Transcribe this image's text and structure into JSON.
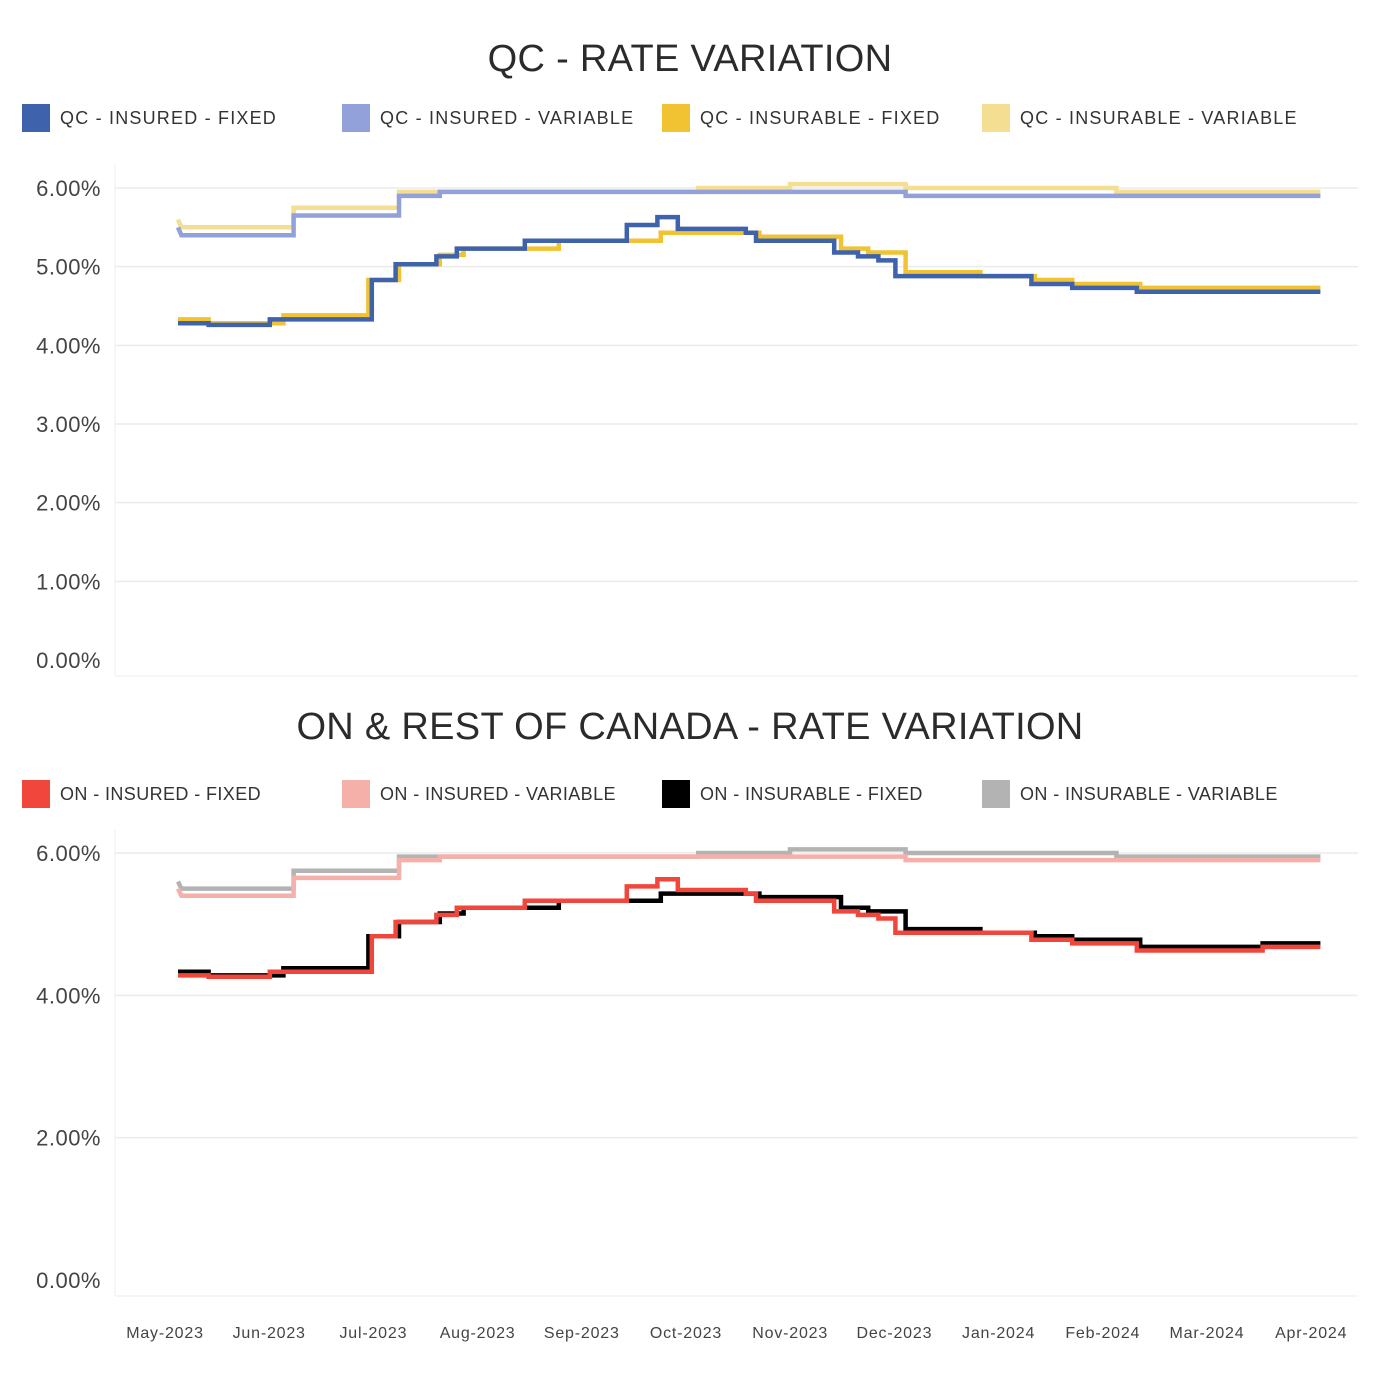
{
  "chart_data": [
    {
      "type": "line",
      "title": "QC - RATE VARIATION",
      "xlabel": "",
      "ylabel": "",
      "ylim": [
        0,
        6.5
      ],
      "yticks": [
        "0.00%",
        "1.00%",
        "2.00%",
        "3.00%",
        "4.00%",
        "5.00%",
        "6.00%"
      ],
      "ytick_values": [
        0,
        1,
        2,
        3,
        4,
        5,
        6
      ],
      "grid": true,
      "legend_position": "top",
      "series": [
        {
          "name": "QC - INSURABLE - VARIABLE",
          "color": "#F3DE92",
          "points": [
            [
              "2023-05-01",
              5.6
            ],
            [
              "2023-05-02",
              5.5
            ],
            [
              "2023-06-04",
              5.5
            ],
            [
              "2023-06-04",
              5.75
            ],
            [
              "2023-07-05",
              5.75
            ],
            [
              "2023-07-05",
              5.95
            ],
            [
              "2023-08-01",
              5.95
            ],
            [
              "2023-10-01",
              5.95
            ],
            [
              "2023-10-01",
              6.0
            ],
            [
              "2023-10-28",
              6.0
            ],
            [
              "2023-10-28",
              6.05
            ],
            [
              "2023-12-01",
              6.05
            ],
            [
              "2023-12-01",
              6.0
            ],
            [
              "2024-02-01",
              6.0
            ],
            [
              "2024-02-01",
              5.95
            ],
            [
              "2024-04-01",
              5.95
            ]
          ]
        },
        {
          "name": "QC - INSURED - VARIABLE",
          "color": "#93A1DA",
          "points": [
            [
              "2023-05-01",
              5.5
            ],
            [
              "2023-05-02",
              5.4
            ],
            [
              "2023-06-04",
              5.4
            ],
            [
              "2023-06-04",
              5.65
            ],
            [
              "2023-07-05",
              5.65
            ],
            [
              "2023-07-05",
              5.9
            ],
            [
              "2023-07-17",
              5.9
            ],
            [
              "2023-07-17",
              5.95
            ],
            [
              "2023-12-01",
              5.95
            ],
            [
              "2023-12-01",
              5.9
            ],
            [
              "2024-04-01",
              5.9
            ]
          ]
        },
        {
          "name": "QC - INSURABLE - FIXED",
          "color": "#F1C232",
          "points": [
            [
              "2023-05-01",
              4.33
            ],
            [
              "2023-05-10",
              4.33
            ],
            [
              "2023-05-10",
              4.28
            ],
            [
              "2023-06-01",
              4.28
            ],
            [
              "2023-06-01",
              4.38
            ],
            [
              "2023-06-26",
              4.38
            ],
            [
              "2023-06-26",
              4.83
            ],
            [
              "2023-07-05",
              4.83
            ],
            [
              "2023-07-05",
              5.03
            ],
            [
              "2023-07-17",
              5.03
            ],
            [
              "2023-07-17",
              5.15
            ],
            [
              "2023-07-24",
              5.15
            ],
            [
              "2023-07-24",
              5.23
            ],
            [
              "2023-08-21",
              5.23
            ],
            [
              "2023-08-21",
              5.33
            ],
            [
              "2023-09-20",
              5.33
            ],
            [
              "2023-09-20",
              5.43
            ],
            [
              "2023-10-19",
              5.43
            ],
            [
              "2023-10-19",
              5.38
            ],
            [
              "2023-11-12",
              5.38
            ],
            [
              "2023-11-12",
              5.23
            ],
            [
              "2023-11-20",
              5.23
            ],
            [
              "2023-11-20",
              5.18
            ],
            [
              "2023-12-01",
              5.18
            ],
            [
              "2023-12-01",
              4.93
            ],
            [
              "2023-12-23",
              4.93
            ],
            [
              "2023-12-23",
              4.88
            ],
            [
              "2024-01-08",
              4.88
            ],
            [
              "2024-01-08",
              4.83
            ],
            [
              "2024-01-19",
              4.83
            ],
            [
              "2024-01-19",
              4.78
            ],
            [
              "2024-02-08",
              4.78
            ],
            [
              "2024-02-08",
              4.73
            ],
            [
              "2024-04-01",
              4.73
            ]
          ]
        },
        {
          "name": "QC - INSURED - FIXED",
          "color": "#3F62AC",
          "points": [
            [
              "2023-05-01",
              4.28
            ],
            [
              "2023-05-10",
              4.28
            ],
            [
              "2023-05-10",
              4.26
            ],
            [
              "2023-05-28",
              4.26
            ],
            [
              "2023-05-28",
              4.33
            ],
            [
              "2023-06-27",
              4.33
            ],
            [
              "2023-06-27",
              4.83
            ],
            [
              "2023-07-04",
              4.83
            ],
            [
              "2023-07-04",
              5.03
            ],
            [
              "2023-07-16",
              5.03
            ],
            [
              "2023-07-16",
              5.13
            ],
            [
              "2023-07-22",
              5.13
            ],
            [
              "2023-07-22",
              5.23
            ],
            [
              "2023-08-11",
              5.23
            ],
            [
              "2023-08-11",
              5.33
            ],
            [
              "2023-09-10",
              5.33
            ],
            [
              "2023-09-10",
              5.53
            ],
            [
              "2023-09-19",
              5.53
            ],
            [
              "2023-09-19",
              5.63
            ],
            [
              "2023-09-25",
              5.63
            ],
            [
              "2023-09-25",
              5.48
            ],
            [
              "2023-10-15",
              5.48
            ],
            [
              "2023-10-15",
              5.43
            ],
            [
              "2023-10-18",
              5.43
            ],
            [
              "2023-10-18",
              5.33
            ],
            [
              "2023-11-10",
              5.33
            ],
            [
              "2023-11-10",
              5.18
            ],
            [
              "2023-11-17",
              5.18
            ],
            [
              "2023-11-17",
              5.13
            ],
            [
              "2023-11-23",
              5.13
            ],
            [
              "2023-11-23",
              5.08
            ],
            [
              "2023-11-28",
              5.08
            ],
            [
              "2023-11-28",
              4.88
            ],
            [
              "2024-01-07",
              4.88
            ],
            [
              "2024-01-07",
              4.78
            ],
            [
              "2024-01-19",
              4.78
            ],
            [
              "2024-01-19",
              4.73
            ],
            [
              "2024-02-07",
              4.73
            ],
            [
              "2024-02-07",
              4.68
            ],
            [
              "2024-04-01",
              4.68
            ]
          ]
        }
      ],
      "legend_entries": [
        {
          "label": "QC - INSURED - FIXED",
          "color": "#3F62AC"
        },
        {
          "label": "QC - INSURED - VARIABLE",
          "color": "#93A1DA"
        },
        {
          "label": "QC - INSURABLE - FIXED",
          "color": "#F1C232"
        },
        {
          "label": "QC - INSURABLE - VARIABLE",
          "color": "#F3DE92"
        }
      ]
    },
    {
      "type": "line",
      "title": "ON & REST OF CANADA - RATE VARIATION",
      "xlabel": "",
      "ylabel": "",
      "ylim": [
        0,
        6.5
      ],
      "yticks": [
        "0.00%",
        "2.00%",
        "4.00%",
        "6.00%"
      ],
      "ytick_values": [
        0,
        2,
        4,
        6
      ],
      "grid": true,
      "legend_position": "top",
      "xticks": [
        "May-2023",
        "Jun-2023",
        "Jul-2023",
        "Aug-2023",
        "Sep-2023",
        "Oct-2023",
        "Nov-2023",
        "Dec-2023",
        "Jan-2024",
        "Feb-2024",
        "Mar-2024",
        "Apr-2024"
      ],
      "series": [
        {
          "name": "ON - INSURABLE - VARIABLE",
          "color": "#B3B3B3",
          "points": [
            [
              "2023-05-01",
              5.6
            ],
            [
              "2023-05-02",
              5.5
            ],
            [
              "2023-06-04",
              5.5
            ],
            [
              "2023-06-04",
              5.75
            ],
            [
              "2023-07-05",
              5.75
            ],
            [
              "2023-07-05",
              5.95
            ],
            [
              "2023-08-01",
              5.95
            ],
            [
              "2023-10-01",
              5.95
            ],
            [
              "2023-10-01",
              6.0
            ],
            [
              "2023-10-28",
              6.0
            ],
            [
              "2023-10-28",
              6.05
            ],
            [
              "2023-12-01",
              6.05
            ],
            [
              "2023-12-01",
              6.0
            ],
            [
              "2024-02-01",
              6.0
            ],
            [
              "2024-02-01",
              5.95
            ],
            [
              "2024-04-01",
              5.95
            ]
          ]
        },
        {
          "name": "ON - INSURED - VARIABLE",
          "color": "#F6B0AA",
          "points": [
            [
              "2023-05-01",
              5.5
            ],
            [
              "2023-05-02",
              5.4
            ],
            [
              "2023-06-04",
              5.4
            ],
            [
              "2023-06-04",
              5.65
            ],
            [
              "2023-07-05",
              5.65
            ],
            [
              "2023-07-05",
              5.9
            ],
            [
              "2023-07-17",
              5.9
            ],
            [
              "2023-07-17",
              5.95
            ],
            [
              "2023-12-01",
              5.95
            ],
            [
              "2023-12-01",
              5.9
            ],
            [
              "2024-04-01",
              5.9
            ]
          ]
        },
        {
          "name": "ON - INSURABLE - FIXED",
          "color": "#000000",
          "points": [
            [
              "2023-05-01",
              4.33
            ],
            [
              "2023-05-10",
              4.33
            ],
            [
              "2023-05-10",
              4.28
            ],
            [
              "2023-06-01",
              4.28
            ],
            [
              "2023-06-01",
              4.38
            ],
            [
              "2023-06-26",
              4.38
            ],
            [
              "2023-06-26",
              4.83
            ],
            [
              "2023-07-05",
              4.83
            ],
            [
              "2023-07-05",
              5.03
            ],
            [
              "2023-07-17",
              5.03
            ],
            [
              "2023-07-17",
              5.15
            ],
            [
              "2023-07-24",
              5.15
            ],
            [
              "2023-07-24",
              5.23
            ],
            [
              "2023-08-21",
              5.23
            ],
            [
              "2023-08-21",
              5.33
            ],
            [
              "2023-09-20",
              5.33
            ],
            [
              "2023-09-20",
              5.43
            ],
            [
              "2023-10-19",
              5.43
            ],
            [
              "2023-10-19",
              5.38
            ],
            [
              "2023-11-12",
              5.38
            ],
            [
              "2023-11-12",
              5.23
            ],
            [
              "2023-11-20",
              5.23
            ],
            [
              "2023-11-20",
              5.18
            ],
            [
              "2023-12-01",
              5.18
            ],
            [
              "2023-12-01",
              4.93
            ],
            [
              "2023-12-23",
              4.93
            ],
            [
              "2023-12-23",
              4.88
            ],
            [
              "2024-01-08",
              4.88
            ],
            [
              "2024-01-08",
              4.83
            ],
            [
              "2024-01-19",
              4.83
            ],
            [
              "2024-01-19",
              4.78
            ],
            [
              "2024-02-08",
              4.78
            ],
            [
              "2024-02-08",
              4.68
            ],
            [
              "2024-03-15",
              4.68
            ],
            [
              "2024-03-15",
              4.73
            ],
            [
              "2024-04-01",
              4.73
            ]
          ]
        },
        {
          "name": "ON - INSURED - FIXED",
          "color": "#F0463C",
          "points": [
            [
              "2023-05-01",
              4.28
            ],
            [
              "2023-05-10",
              4.28
            ],
            [
              "2023-05-10",
              4.26
            ],
            [
              "2023-05-28",
              4.26
            ],
            [
              "2023-05-28",
              4.33
            ],
            [
              "2023-06-27",
              4.33
            ],
            [
              "2023-06-27",
              4.83
            ],
            [
              "2023-07-04",
              4.83
            ],
            [
              "2023-07-04",
              5.03
            ],
            [
              "2023-07-16",
              5.03
            ],
            [
              "2023-07-16",
              5.13
            ],
            [
              "2023-07-22",
              5.13
            ],
            [
              "2023-07-22",
              5.23
            ],
            [
              "2023-08-11",
              5.23
            ],
            [
              "2023-08-11",
              5.33
            ],
            [
              "2023-09-10",
              5.33
            ],
            [
              "2023-09-10",
              5.53
            ],
            [
              "2023-09-19",
              5.53
            ],
            [
              "2023-09-19",
              5.63
            ],
            [
              "2023-09-25",
              5.63
            ],
            [
              "2023-09-25",
              5.48
            ],
            [
              "2023-10-15",
              5.48
            ],
            [
              "2023-10-15",
              5.43
            ],
            [
              "2023-10-18",
              5.43
            ],
            [
              "2023-10-18",
              5.33
            ],
            [
              "2023-11-10",
              5.33
            ],
            [
              "2023-11-10",
              5.18
            ],
            [
              "2023-11-17",
              5.18
            ],
            [
              "2023-11-17",
              5.13
            ],
            [
              "2023-11-23",
              5.13
            ],
            [
              "2023-11-23",
              5.08
            ],
            [
              "2023-11-28",
              5.08
            ],
            [
              "2023-11-28",
              4.88
            ],
            [
              "2024-01-07",
              4.88
            ],
            [
              "2024-01-07",
              4.78
            ],
            [
              "2024-01-19",
              4.78
            ],
            [
              "2024-01-19",
              4.73
            ],
            [
              "2024-02-07",
              4.73
            ],
            [
              "2024-02-07",
              4.63
            ],
            [
              "2024-03-15",
              4.63
            ],
            [
              "2024-03-15",
              4.68
            ],
            [
              "2024-04-01",
              4.68
            ]
          ]
        }
      ],
      "legend_entries": [
        {
          "label": "ON - INSURED - FIXED",
          "color": "#F0463C"
        },
        {
          "label": "ON - INSURED - VARIABLE",
          "color": "#F6B0AA"
        },
        {
          "label": "ON - INSURABLE - FIXED",
          "color": "#000000"
        },
        {
          "label": "ON - INSURABLE - VARIABLE",
          "color": "#B3B3B3"
        }
      ]
    }
  ]
}
